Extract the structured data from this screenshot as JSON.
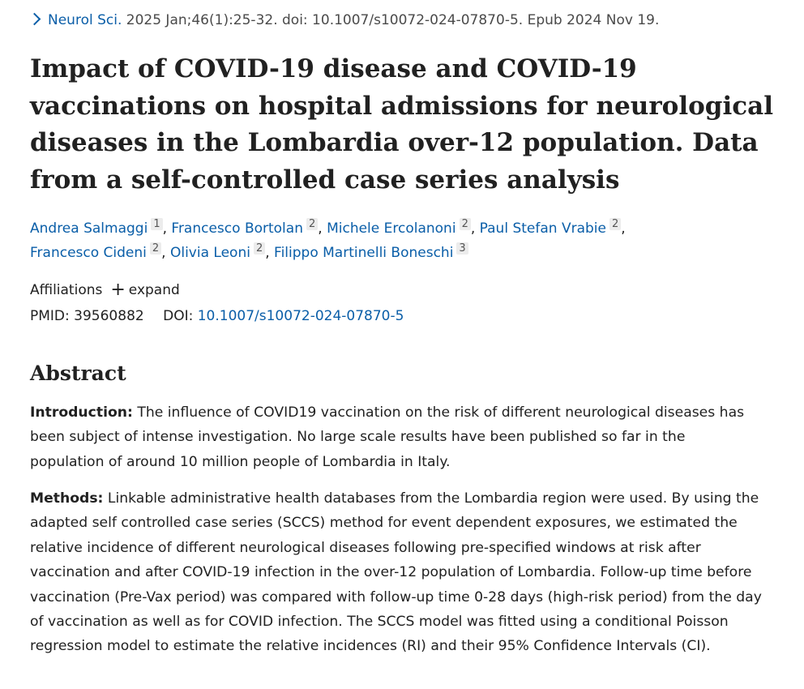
{
  "citation": {
    "journal": "Neurol Sci.",
    "details": " 2025 Jan;46(1):25-32. doi: 10.1007/s10072-024-07870-5. Epub 2024 Nov 19."
  },
  "title": "Impact of COVID-19 disease and COVID-19 vaccinations on hospital admissions for neurological diseases in the Lombardia over-12 population. Data from a self-controlled case series analysis",
  "authors": [
    {
      "name": "Andrea Salmaggi",
      "aff": "1"
    },
    {
      "name": "Francesco Bortolan",
      "aff": "2"
    },
    {
      "name": "Michele Ercolanoni",
      "aff": "2"
    },
    {
      "name": "Paul Stefan Vrabie",
      "aff": "2"
    },
    {
      "name": "Francesco Cideni",
      "aff": "2"
    },
    {
      "name": "Olivia Leoni",
      "aff": "2"
    },
    {
      "name": "Filippo Martinelli Boneschi",
      "aff": "3"
    }
  ],
  "affiliations": {
    "label": "Affiliations",
    "toggle": "expand"
  },
  "identifiers": {
    "pmid_label": "PMID:",
    "pmid": "39560882",
    "doi_label": "DOI:",
    "doi": "10.1007/s10072-024-07870-5"
  },
  "abstract": {
    "heading": "Abstract",
    "introduction_label": "Introduction:",
    "introduction_text": " The influence of COVID19 vaccination on the risk of different neurological diseases has been subject of intense investigation. No large scale results have been published so far in the population of around 10 million people of Lombardia in Italy.",
    "methods_label": "Methods:",
    "methods_text": " Linkable administrative health databases from the Lombardia region were used. By using the adapted self controlled case series (SCCS) method for event dependent exposures, we estimated the relative incidence of different neurological diseases following pre-specified windows at risk after vaccination and after COVID-19 infection in the over-12 population of Lombardia. Follow-up time before vaccination (Pre-Vax period) was compared with follow-up time 0-28 days (high-risk period) from the day of vaccination as well as for COVID infection. The SCCS model was fitted using a conditional Poisson regression model to estimate the relative incidences (RI) and their 95% Confidence Intervals (CI)."
  },
  "colors": {
    "link": "#0a5ea8",
    "text": "#212121"
  }
}
